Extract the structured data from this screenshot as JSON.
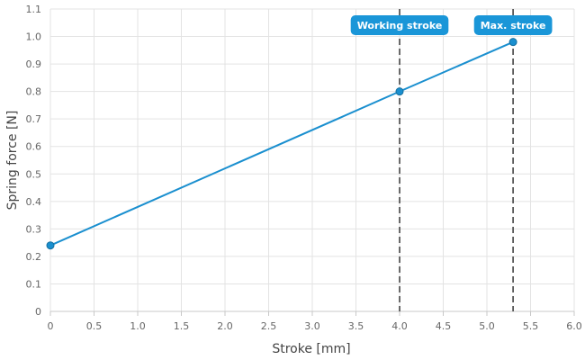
{
  "chart_data": {
    "type": "line",
    "xlabel": "Stroke [mm]",
    "ylabel": "Spring force [N]",
    "xlim": [
      0,
      6.0
    ],
    "ylim": [
      0,
      1.1
    ],
    "x_ticks": [
      "0",
      "0.5",
      "1.0",
      "1.5",
      "2.0",
      "2.5",
      "3.0",
      "3.5",
      "4.0",
      "4.5",
      "5.0",
      "5.5",
      "6.0"
    ],
    "y_ticks": [
      "0",
      "0.1",
      "0.2",
      "0.3",
      "0.4",
      "0.5",
      "0.6",
      "0.7",
      "0.8",
      "0.9",
      "1.0",
      "1.1"
    ],
    "grid": true,
    "series": [
      {
        "color": "#1a8fcf",
        "points": [
          {
            "x": 0,
            "y": 0.24
          },
          {
            "x": 4.0,
            "y": 0.8
          },
          {
            "x": 5.3,
            "y": 0.98
          }
        ]
      }
    ],
    "annotations": [
      {
        "label": "Working stroke",
        "x": 4.0
      },
      {
        "label": "Max. stroke",
        "x": 5.3
      }
    ],
    "annotation_color": "#1a96d8"
  }
}
